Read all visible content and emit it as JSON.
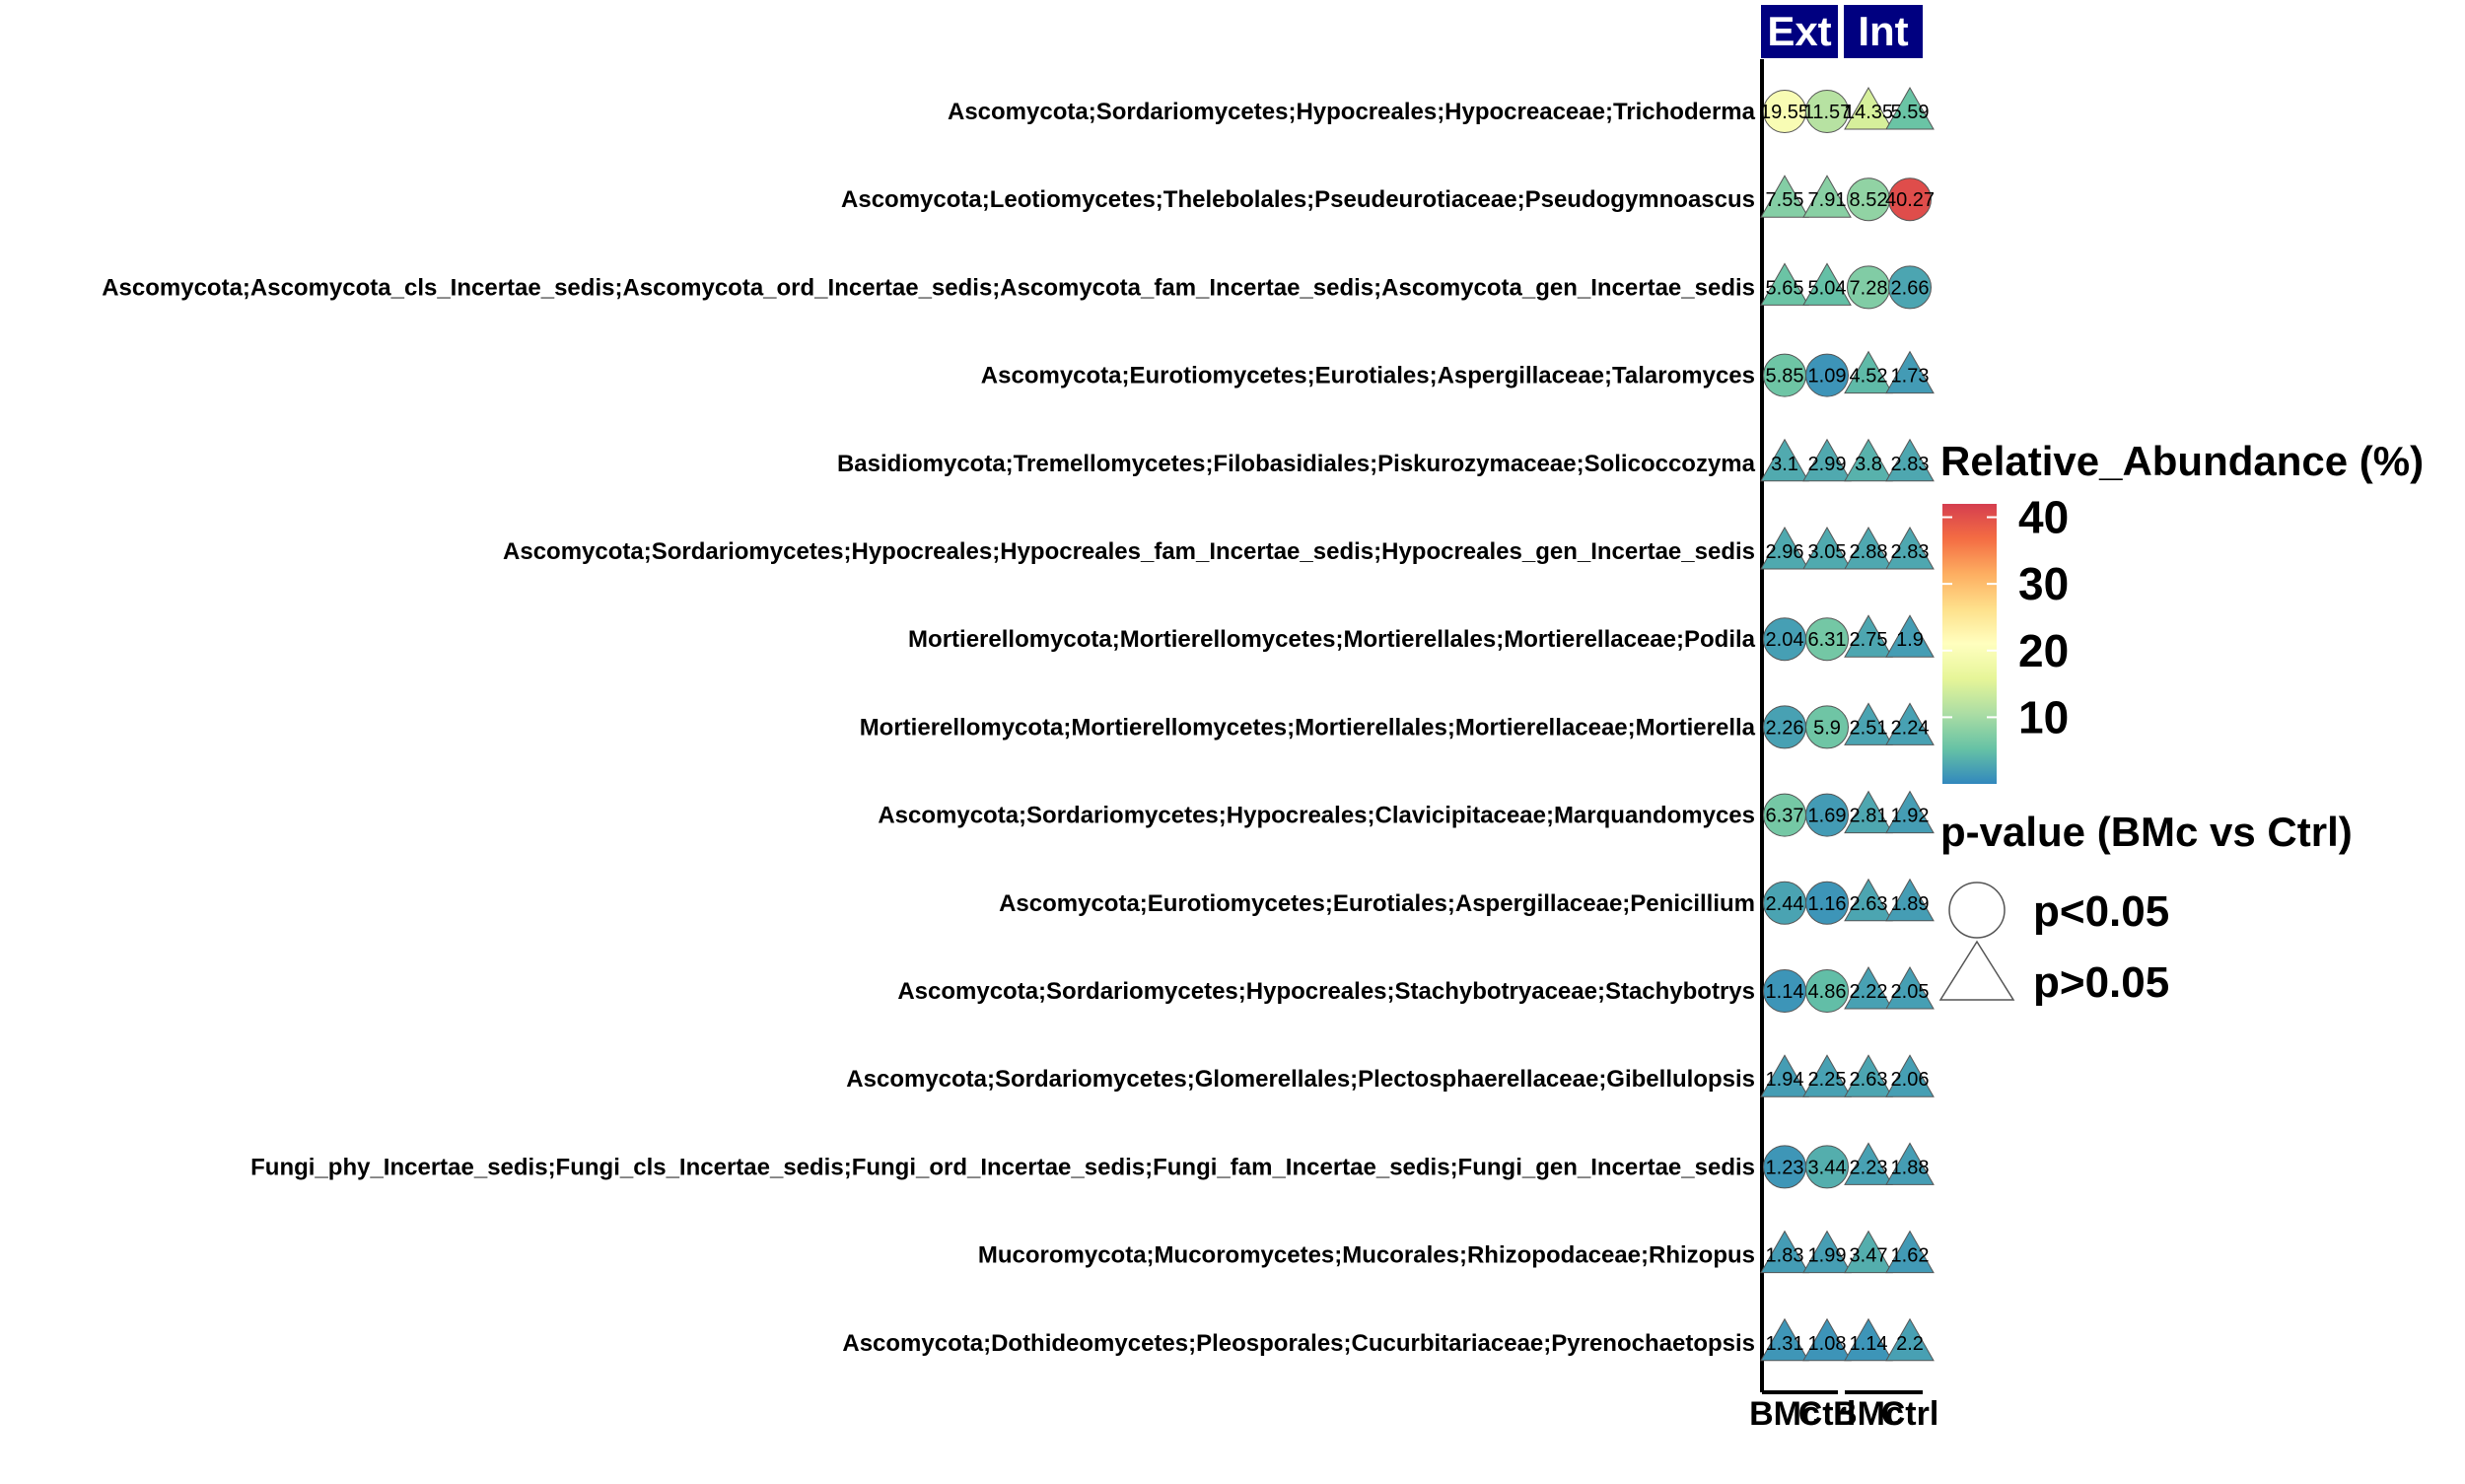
{
  "chart_data": {
    "type": "bubble-matrix",
    "facets": [
      "Ext",
      "Int"
    ],
    "groups": [
      "BMc",
      "Ctrl"
    ],
    "x_tick_labels": [
      "BMc",
      "Ctrl",
      "BMc",
      "Ctrl"
    ],
    "taxa": [
      "Ascomycota;Sordariomycetes;Hypocreales;Hypocreaceae;Trichoderma",
      "Ascomycota;Leotiomycetes;Thelebolales;Pseudeurotiaceae;Pseudogymnoascus",
      "Ascomycota;Ascomycota_cls_Incertae_sedis;Ascomycota_ord_Incertae_sedis;Ascomycota_fam_Incertae_sedis;Ascomycota_gen_Incertae_sedis",
      "Ascomycota;Eurotiomycetes;Eurotiales;Aspergillaceae;Talaromyces",
      "Basidiomycota;Tremellomycetes;Filobasidiales;Piskurozymaceae;Solicoccozyma",
      "Ascomycota;Sordariomycetes;Hypocreales;Hypocreales_fam_Incertae_sedis;Hypocreales_gen_Incertae_sedis",
      "Mortierellomycota;Mortierellomycetes;Mortierellales;Mortierellaceae;Podila",
      "Mortierellomycota;Mortierellomycetes;Mortierellales;Mortierellaceae;Mortierella",
      "Ascomycota;Sordariomycetes;Hypocreales;Clavicipitaceae;Marquandomyces",
      "Ascomycota;Eurotiomycetes;Eurotiales;Aspergillaceae;Penicillium",
      "Ascomycota;Sordariomycetes;Hypocreales;Stachybotryaceae;Stachybotrys",
      "Ascomycota;Sordariomycetes;Glomerellales;Plectosphaerellaceae;Gibellulopsis",
      "Fungi_phy_Incertae_sedis;Fungi_cls_Incertae_sedis;Fungi_ord_Incertae_sedis;Fungi_fam_Incertae_sedis;Fungi_gen_Incertae_sedis",
      "Mucoromycota;Mucoromycetes;Mucorales;Rhizopodaceae;Rhizopus",
      "Ascomycota;Dothideomycetes;Pleosporales;Cucurbitariaceae;Pyrenochaetopsis"
    ],
    "values": [
      [
        {
          "v": 19.55,
          "label": "19.55",
          "sig": true
        },
        {
          "v": 11.57,
          "label": "11.57",
          "sig": true
        },
        {
          "v": 14.35,
          "label": "14.35",
          "sig": false
        },
        {
          "v": 5.59,
          "label": "5.59",
          "sig": false
        }
      ],
      [
        {
          "v": 7.55,
          "label": "7.55",
          "sig": false
        },
        {
          "v": 7.91,
          "label": "7.91",
          "sig": false
        },
        {
          "v": 8.52,
          "label": "8.52",
          "sig": true
        },
        {
          "v": 40.27,
          "label": "40.27",
          "sig": true
        }
      ],
      [
        {
          "v": 5.65,
          "label": "5.65",
          "sig": false
        },
        {
          "v": 5.04,
          "label": "5.04",
          "sig": false
        },
        {
          "v": 7.28,
          "label": "7.28",
          "sig": true
        },
        {
          "v": 2.66,
          "label": "2.66",
          "sig": true
        }
      ],
      [
        {
          "v": 5.85,
          "label": "5.85",
          "sig": true
        },
        {
          "v": 1.09,
          "label": "1.09",
          "sig": true
        },
        {
          "v": 4.52,
          "label": "4.52",
          "sig": false
        },
        {
          "v": 1.73,
          "label": "1.73",
          "sig": false
        }
      ],
      [
        {
          "v": 3.1,
          "label": "3.1",
          "sig": false
        },
        {
          "v": 2.99,
          "label": "2.99",
          "sig": false
        },
        {
          "v": 3.8,
          "label": "3.8",
          "sig": false
        },
        {
          "v": 2.83,
          "label": "2.83",
          "sig": false
        }
      ],
      [
        {
          "v": 2.96,
          "label": "2.96",
          "sig": false
        },
        {
          "v": 3.05,
          "label": "3.05",
          "sig": false
        },
        {
          "v": 2.88,
          "label": "2.88",
          "sig": false
        },
        {
          "v": 2.83,
          "label": "2.83",
          "sig": false
        }
      ],
      [
        {
          "v": 2.04,
          "label": "2.04",
          "sig": true
        },
        {
          "v": 6.31,
          "label": "6.31",
          "sig": true
        },
        {
          "v": 2.75,
          "label": "2.75",
          "sig": false
        },
        {
          "v": 1.9,
          "label": "1.9",
          "sig": false
        }
      ],
      [
        {
          "v": 2.26,
          "label": "2.26",
          "sig": true
        },
        {
          "v": 5.9,
          "label": "5.9",
          "sig": true
        },
        {
          "v": 2.51,
          "label": "2.51",
          "sig": false
        },
        {
          "v": 2.24,
          "label": "2.24",
          "sig": false
        }
      ],
      [
        {
          "v": 6.37,
          "label": "6.37",
          "sig": true
        },
        {
          "v": 1.69,
          "label": "1.69",
          "sig": true
        },
        {
          "v": 2.81,
          "label": "2.81",
          "sig": false
        },
        {
          "v": 1.92,
          "label": "1.92",
          "sig": false
        }
      ],
      [
        {
          "v": 2.44,
          "label": "2.44",
          "sig": true
        },
        {
          "v": 1.16,
          "label": "1.16",
          "sig": true
        },
        {
          "v": 2.63,
          "label": "2.63",
          "sig": false
        },
        {
          "v": 1.89,
          "label": "1.89",
          "sig": false
        }
      ],
      [
        {
          "v": 1.14,
          "label": "1.14",
          "sig": true
        },
        {
          "v": 4.86,
          "label": "4.86",
          "sig": true
        },
        {
          "v": 2.22,
          "label": "2.22",
          "sig": false
        },
        {
          "v": 2.05,
          "label": "2.05",
          "sig": false
        }
      ],
      [
        {
          "v": 1.94,
          "label": "1.94",
          "sig": false
        },
        {
          "v": 2.25,
          "label": "2.25",
          "sig": false
        },
        {
          "v": 2.63,
          "label": "2.63",
          "sig": false
        },
        {
          "v": 2.06,
          "label": "2.06",
          "sig": false
        }
      ],
      [
        {
          "v": 1.23,
          "label": "1.23",
          "sig": true
        },
        {
          "v": 3.44,
          "label": "3.44",
          "sig": true
        },
        {
          "v": 2.23,
          "label": "2.23",
          "sig": false
        },
        {
          "v": 1.88,
          "label": "1.88",
          "sig": false
        }
      ],
      [
        {
          "v": 1.83,
          "label": "1.83",
          "sig": false
        },
        {
          "v": 1.99,
          "label": "1.99",
          "sig": false
        },
        {
          "v": 3.47,
          "label": "3.47",
          "sig": false
        },
        {
          "v": 1.62,
          "label": "1.62",
          "sig": false
        }
      ],
      [
        {
          "v": 1.31,
          "label": "1.31",
          "sig": false
        },
        {
          "v": 1.08,
          "label": "1.08",
          "sig": false
        },
        {
          "v": 1.14,
          "label": "1.14",
          "sig": false
        },
        {
          "v": 2.2,
          "label": "2.2",
          "sig": false
        }
      ]
    ],
    "color_legend": {
      "title": "Relative_Abundance (%)",
      "ticks": [
        40,
        30,
        20,
        10
      ],
      "range": [
        0,
        42
      ],
      "palette": [
        "#3288bd",
        "#66c2a5",
        "#abdda4",
        "#e6f598",
        "#ffffbf",
        "#fee08b",
        "#fdae61",
        "#f46d43",
        "#d53e4f"
      ]
    },
    "shape_legend": {
      "title": "p-value (BMc vs Ctrl)",
      "items": [
        {
          "shape": "circle",
          "label": "p<0.05"
        },
        {
          "shape": "triangle",
          "label": "p>0.05"
        }
      ]
    },
    "strip_color": "#000080",
    "strip_text_color": "#ffffff"
  }
}
